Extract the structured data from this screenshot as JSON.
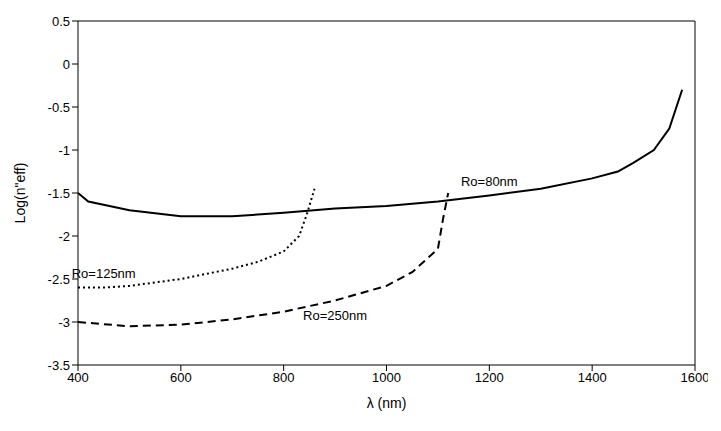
{
  "chart_data": {
    "type": "line",
    "x_label": "λ (nm)",
    "y_label": "Log(n\"eff)",
    "xlim": [
      400,
      1600
    ],
    "xticks": [
      400,
      600,
      800,
      1000,
      1200,
      1400,
      1600
    ],
    "ylim": [
      -3.5,
      0.5
    ],
    "yticks": [
      -3.5,
      -3,
      -2.5,
      -2,
      -1.5,
      -1,
      -0.5,
      0,
      0.5
    ],
    "grid": false,
    "series": [
      {
        "name": "Ro=80nm",
        "color": "#000000",
        "line_style": "solid",
        "x": [
          400,
          420,
          500,
          600,
          700,
          800,
          900,
          1000,
          1100,
          1200,
          1300,
          1400,
          1450,
          1480,
          1520,
          1550,
          1575
        ],
        "values": [
          -1.5,
          -1.6,
          -1.7,
          -1.77,
          -1.77,
          -1.73,
          -1.68,
          -1.65,
          -1.6,
          -1.53,
          -1.45,
          -1.33,
          -1.25,
          -1.15,
          -1.0,
          -0.75,
          -0.3
        ]
      },
      {
        "name": "Ro=125nm",
        "color": "#000000",
        "line_style": "dotted",
        "x": [
          400,
          450,
          500,
          600,
          700,
          750,
          800,
          830,
          845,
          860
        ],
        "values": [
          -2.6,
          -2.6,
          -2.58,
          -2.5,
          -2.38,
          -2.3,
          -2.18,
          -2.0,
          -1.75,
          -1.45
        ]
      },
      {
        "name": "Ro=250nm",
        "color": "#000000",
        "line_style": "dashed",
        "x": [
          400,
          500,
          600,
          700,
          800,
          900,
          1000,
          1050,
          1100,
          1110,
          1120
        ],
        "values": [
          -3.0,
          -3.05,
          -3.03,
          -2.97,
          -2.88,
          -2.75,
          -2.58,
          -2.42,
          -2.15,
          -1.8,
          -1.5
        ]
      }
    ]
  }
}
